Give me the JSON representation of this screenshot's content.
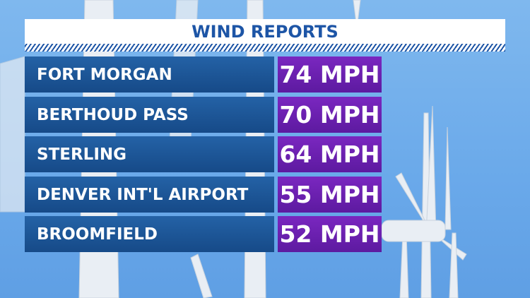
{
  "header": {
    "title": "WIND REPORTS"
  },
  "table": {
    "rows": [
      [
        "FORT MORGAN",
        "74 MPH"
      ],
      [
        "BERTHOUD PASS",
        "70 MPH"
      ],
      [
        "STERLING",
        "64 MPH"
      ],
      [
        "DENVER INT'L AIRPORT",
        "55 MPH"
      ],
      [
        "BROOMFIELD",
        "52 MPH"
      ]
    ]
  }
}
